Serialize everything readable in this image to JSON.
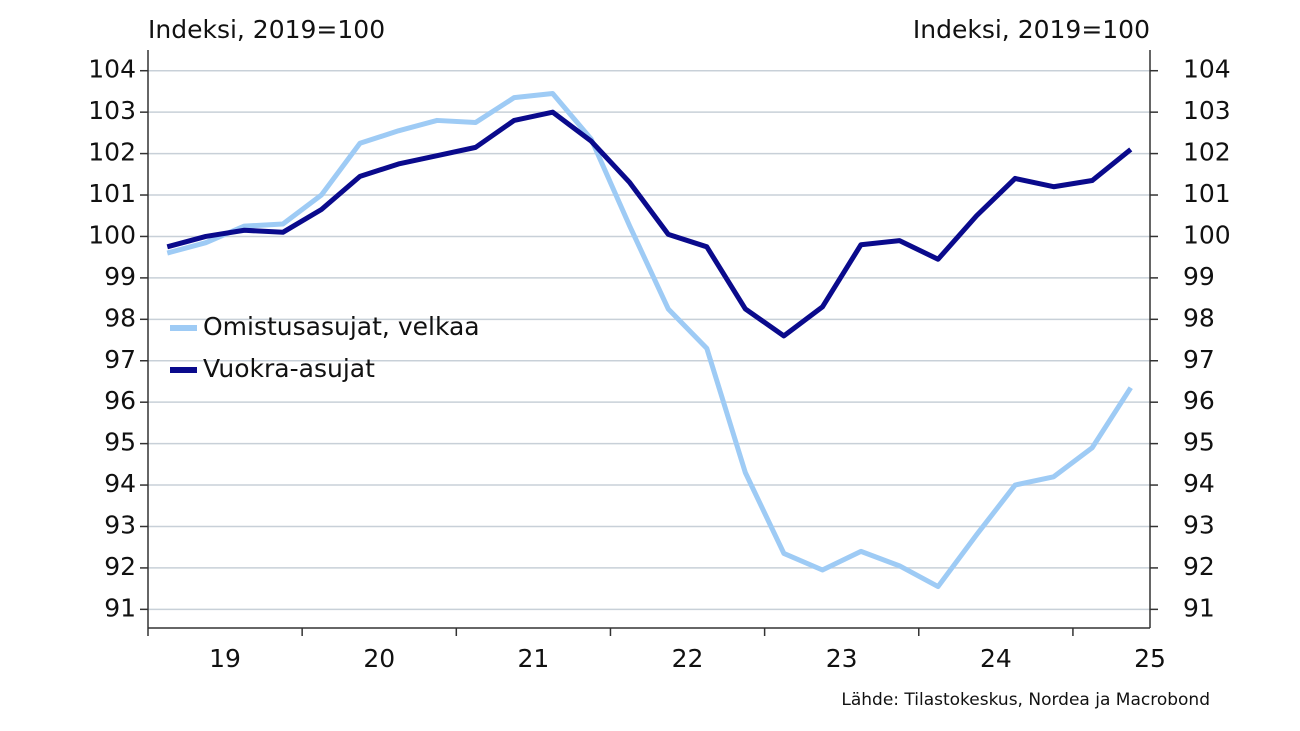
{
  "chart_data": {
    "type": "line",
    "y_label": "Indeksi, 2019=100",
    "y2_label": "Indeksi, 2019=100",
    "source": "Lähde: Tilastokeskus, Nordea ja Macrobond",
    "x": [
      19.125,
      19.375,
      19.625,
      19.875,
      20.125,
      20.375,
      20.625,
      20.875,
      21.125,
      21.375,
      21.625,
      21.875,
      22.125,
      22.375,
      22.625,
      22.875,
      23.125,
      23.375,
      23.625,
      23.875,
      24.125,
      24.375,
      24.625,
      24.875,
      25.125,
      25.375
    ],
    "series": [
      {
        "name": "Omistusasujat, velkaa",
        "color": "#9ecbf5",
        "values": [
          99.6,
          99.85,
          100.25,
          100.3,
          101,
          102.25,
          102.55,
          102.8,
          102.75,
          103.35,
          103.45,
          102.35,
          100.25,
          98.25,
          97.3,
          94.3,
          92.35,
          91.95,
          92.4,
          92.05,
          91.55,
          92.8,
          94,
          94.2,
          94.9,
          96.35
        ]
      },
      {
        "name": "Vuokra-asujat",
        "color": "#0a0a8c",
        "values": [
          99.75,
          100,
          100.15,
          100.1,
          100.65,
          101.45,
          101.75,
          101.95,
          102.15,
          102.8,
          103,
          102.3,
          101.3,
          100.05,
          99.75,
          98.25,
          97.6,
          98.3,
          99.8,
          99.9,
          99.45,
          100.5,
          101.4,
          101.2,
          101.35,
          102.1
        ]
      }
    ],
    "xlim": [
      19,
      25.5
    ],
    "xticks": [
      19,
      20,
      21,
      22,
      23,
      24,
      25
    ],
    "ylim": [
      90.55,
      104.5
    ],
    "yticks": [
      91,
      92,
      93,
      94,
      95,
      96,
      97,
      98,
      99,
      100,
      101,
      102,
      103,
      104
    ],
    "y2lim": [
      90.55,
      104.5
    ],
    "y2ticks": [
      91,
      92,
      93,
      94,
      95,
      96,
      97,
      98,
      99,
      100,
      101,
      102,
      103,
      104
    ],
    "grid": true,
    "legend": "left"
  }
}
